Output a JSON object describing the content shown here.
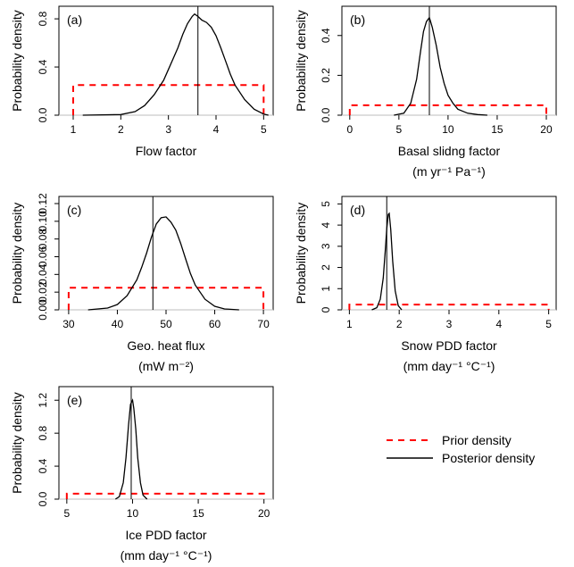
{
  "legend": {
    "placement": "bottom-right",
    "items": [
      {
        "label": "Prior density",
        "color": "#ff0000",
        "dash": true
      },
      {
        "label": "Posterior density",
        "color": "#000000",
        "dash": false
      }
    ]
  },
  "colors": {
    "prior": "#ff0000",
    "posterior": "#000000",
    "marker": "#000000",
    "baseline": "#bebebe"
  },
  "chart_data": [
    {
      "type": "line",
      "panel_label": "(a)",
      "ylabel": "Probability density",
      "xlabel": [
        "Flow factor"
      ],
      "xlim": [
        0.7,
        5.2
      ],
      "ylim": [
        0,
        0.86
      ],
      "xticks": [
        1,
        2,
        3,
        4,
        5
      ],
      "xtick_labels": [
        "1",
        "2",
        "3",
        "4",
        "5"
      ],
      "yticks": [
        0,
        0.4,
        0.8
      ],
      "ytick_labels": [
        "0.0",
        "0.4",
        "0.8"
      ],
      "prior": {
        "range": [
          1,
          5
        ],
        "density": 0.25
      },
      "marker_x": 3.62,
      "posterior": {
        "x": [
          1.2,
          2.0,
          2.3,
          2.5,
          2.7,
          2.9,
          3.0,
          3.1,
          3.2,
          3.3,
          3.4,
          3.5,
          3.55,
          3.62,
          3.7,
          3.8,
          3.9,
          4.0,
          4.1,
          4.2,
          4.3,
          4.4,
          4.6,
          4.8,
          5.0,
          5.1
        ],
        "y": [
          0,
          0.005,
          0.03,
          0.08,
          0.17,
          0.29,
          0.38,
          0.47,
          0.56,
          0.67,
          0.76,
          0.82,
          0.84,
          0.82,
          0.79,
          0.77,
          0.73,
          0.66,
          0.56,
          0.45,
          0.34,
          0.25,
          0.13,
          0.05,
          0.01,
          0
        ]
      }
    },
    {
      "type": "line",
      "panel_label": "(b)",
      "ylabel": "Probability density",
      "xlabel": [
        "Basal slidng factor",
        "(m yr⁻¹ Pa⁻¹)"
      ],
      "xlim": [
        -0.8,
        21
      ],
      "ylim": [
        0,
        0.52
      ],
      "xticks": [
        0,
        5,
        10,
        15,
        20
      ],
      "xtick_labels": [
        "0",
        "5",
        "10",
        "15",
        "20"
      ],
      "yticks": [
        0,
        0.2,
        0.4
      ],
      "ytick_labels": [
        "0.0",
        "0.2",
        "0.4"
      ],
      "prior": {
        "range": [
          0,
          20
        ],
        "density": 0.05
      },
      "marker_x": 8.1,
      "posterior": {
        "x": [
          4.5,
          5.5,
          6.2,
          6.8,
          7.2,
          7.5,
          7.8,
          8.1,
          8.4,
          8.8,
          9.2,
          9.6,
          10.0,
          10.5,
          11.0,
          12.0,
          13.0,
          14.0
        ],
        "y": [
          0,
          0.01,
          0.06,
          0.18,
          0.32,
          0.42,
          0.47,
          0.49,
          0.44,
          0.35,
          0.24,
          0.16,
          0.1,
          0.06,
          0.03,
          0.01,
          0.003,
          0
        ]
      }
    },
    {
      "type": "line",
      "panel_label": "(c)",
      "ylabel": "Probability density",
      "xlabel": [
        "Geo. heat flux",
        "(mW m⁻²)"
      ],
      "xlim": [
        28,
        72
      ],
      "ylim": [
        0,
        0.122
      ],
      "xticks": [
        30,
        40,
        50,
        60,
        70
      ],
      "xtick_labels": [
        "30",
        "40",
        "50",
        "60",
        "70"
      ],
      "yticks": [
        0,
        0.02,
        0.04,
        0.06,
        0.08,
        0.1,
        0.12
      ],
      "ytick_labels": [
        "0.00",
        "0.02",
        "0.04",
        "0.06",
        "0.08",
        "0.10",
        "0.12"
      ],
      "prior": {
        "range": [
          30,
          70
        ],
        "density": 0.025
      },
      "marker_x": 47.3,
      "posterior": {
        "x": [
          34,
          38,
          40,
          42,
          44,
          45,
          46,
          47,
          48,
          49,
          50,
          51,
          52,
          53,
          54,
          55,
          56,
          58,
          60,
          62,
          65
        ],
        "y": [
          0,
          0.002,
          0.006,
          0.016,
          0.034,
          0.048,
          0.064,
          0.082,
          0.097,
          0.104,
          0.105,
          0.099,
          0.09,
          0.075,
          0.058,
          0.041,
          0.028,
          0.012,
          0.004,
          0.001,
          0
        ]
      }
    },
    {
      "type": "line",
      "panel_label": "(d)",
      "ylabel": "Probability density",
      "xlabel": [
        "Snow PDD factor",
        "(mm day⁻¹ °C⁻¹)"
      ],
      "xlim": [
        0.85,
        5.15
      ],
      "ylim": [
        0,
        5.1
      ],
      "xticks": [
        1,
        2,
        3,
        4,
        5
      ],
      "xtick_labels": [
        "1",
        "2",
        "3",
        "4",
        "5"
      ],
      "yticks": [
        0,
        1,
        2,
        3,
        4,
        5
      ],
      "ytick_labels": [
        "0",
        "1",
        "2",
        "3",
        "4",
        "5"
      ],
      "prior": {
        "range": [
          1,
          5
        ],
        "density": 0.25
      },
      "marker_x": 1.75,
      "posterior": {
        "x": [
          1.45,
          1.55,
          1.62,
          1.68,
          1.72,
          1.75,
          1.78,
          1.8,
          1.83,
          1.87,
          1.92,
          1.98,
          2.05
        ],
        "y": [
          0,
          0.1,
          0.5,
          1.5,
          2.8,
          3.8,
          4.5,
          4.55,
          3.8,
          2.3,
          0.9,
          0.2,
          0
        ]
      }
    },
    {
      "type": "line",
      "panel_label": "(e)",
      "ylabel": "Probability density",
      "xlabel": [
        "Ice PDD factor",
        "(mm day⁻¹ °C⁻¹)"
      ],
      "xlim": [
        4.4,
        20.7
      ],
      "ylim": [
        0,
        1.3
      ],
      "xticks": [
        5,
        10,
        15,
        20
      ],
      "xtick_labels": [
        "5",
        "10",
        "15",
        "20"
      ],
      "yticks": [
        0,
        0.4,
        0.8,
        1.2
      ],
      "ytick_labels": [
        "0.0",
        "0.4",
        "0.8",
        "1.2"
      ],
      "prior": {
        "range": [
          5,
          20
        ],
        "density": 0.067
      },
      "marker_x": 9.9,
      "posterior": {
        "x": [
          8.7,
          9.0,
          9.3,
          9.5,
          9.7,
          9.85,
          10.0,
          10.1,
          10.25,
          10.4,
          10.6,
          10.8,
          11.1
        ],
        "y": [
          0,
          0.03,
          0.2,
          0.5,
          0.9,
          1.15,
          1.2,
          1.1,
          0.85,
          0.5,
          0.2,
          0.05,
          0
        ]
      }
    }
  ]
}
